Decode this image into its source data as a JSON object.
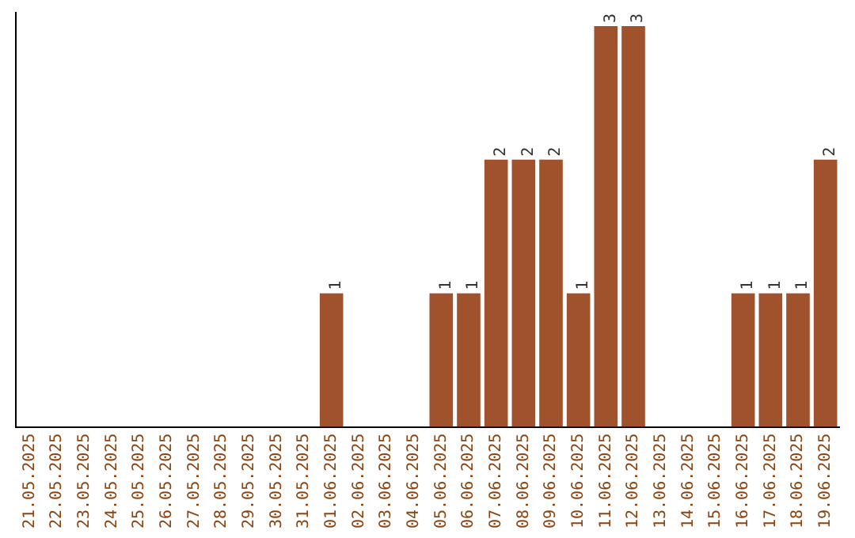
{
  "chart_data": {
    "type": "bar",
    "categories": [
      "21.05.2025",
      "22.05.2025",
      "23.05.2025",
      "24.05.2025",
      "25.05.2025",
      "26.05.2025",
      "27.05.2025",
      "28.05.2025",
      "29.05.2025",
      "30.05.2025",
      "31.05.2025",
      "01.06.2025",
      "02.06.2025",
      "03.06.2025",
      "04.06.2025",
      "05.06.2025",
      "06.06.2025",
      "07.06.2025",
      "08.06.2025",
      "09.06.2025",
      "10.06.2025",
      "11.06.2025",
      "12.06.2025",
      "13.06.2025",
      "14.06.2025",
      "15.06.2025",
      "16.06.2025",
      "17.06.2025",
      "18.06.2025",
      "19.06.2025"
    ],
    "values": [
      0,
      0,
      0,
      0,
      0,
      0,
      0,
      0,
      0,
      0,
      0,
      1,
      0,
      0,
      0,
      1,
      1,
      2,
      2,
      2,
      1,
      3,
      3,
      0,
      0,
      0,
      1,
      1,
      1,
      2
    ],
    "value_labels": [
      null,
      null,
      null,
      null,
      null,
      null,
      null,
      null,
      null,
      null,
      null,
      "1",
      null,
      null,
      null,
      "1",
      "1",
      "2",
      "2",
      "2",
      "1",
      "3",
      "3",
      null,
      null,
      null,
      "1",
      "1",
      "1",
      "2"
    ],
    "color": "#a0522d",
    "ylim": [
      0,
      3.1
    ],
    "tick_labels": "x",
    "grid": false,
    "legend": false
  }
}
